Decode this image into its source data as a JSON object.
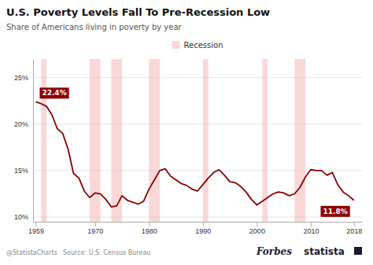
{
  "chart_data": {
    "type": "line",
    "title": "U.S. Poverty Levels Fall To Pre-Recession Low",
    "subtitle": "Share of Americans living in poverty by year",
    "source": "Source: U.S. Census Bureau",
    "credits": [
      "@StatistaCharts",
      "Forbes",
      "statista"
    ],
    "x": [
      1959,
      1960,
      1961,
      1962,
      1963,
      1964,
      1965,
      1966,
      1967,
      1968,
      1969,
      1970,
      1971,
      1972,
      1973,
      1974,
      1975,
      1976,
      1977,
      1978,
      1979,
      1980,
      1981,
      1982,
      1983,
      1984,
      1985,
      1986,
      1987,
      1988,
      1989,
      1990,
      1991,
      1992,
      1993,
      1994,
      1995,
      1996,
      1997,
      1998,
      1999,
      2000,
      2001,
      2002,
      2003,
      2004,
      2005,
      2006,
      2007,
      2008,
      2009,
      2010,
      2011,
      2012,
      2013,
      2014,
      2015,
      2016,
      2017,
      2018
    ],
    "series": [
      {
        "color": "#8B0000",
        "values": [
          22.4,
          22.2,
          21.9,
          21.0,
          19.5,
          19.0,
          17.3,
          14.7,
          14.2,
          12.8,
          12.1,
          12.6,
          12.5,
          11.9,
          11.1,
          11.2,
          12.3,
          11.8,
          11.6,
          11.4,
          11.7,
          13.0,
          14.0,
          15.0,
          15.2,
          14.4,
          14.0,
          13.6,
          13.4,
          13.0,
          12.8,
          13.5,
          14.2,
          14.8,
          15.1,
          14.5,
          13.8,
          13.7,
          13.3,
          12.7,
          11.9,
          11.3,
          11.7,
          12.1,
          12.5,
          12.7,
          12.6,
          12.3,
          12.5,
          13.2,
          14.3,
          15.1,
          15.0,
          15.0,
          14.5,
          14.8,
          13.5,
          12.7,
          12.3,
          11.8
        ]
      }
    ],
    "bands": {
      "name": "Recession",
      "color": "#f5b8b8",
      "periods": [
        [
          1960,
          1961
        ],
        [
          1969,
          1971
        ],
        [
          1973,
          1975
        ],
        [
          1980,
          1982
        ],
        [
          1990,
          1991
        ],
        [
          2001,
          2002
        ],
        [
          2007,
          2009
        ]
      ]
    },
    "annotations": [
      {
        "x": 1959,
        "y": 22.4,
        "label": "22.4%"
      },
      {
        "x": 2018,
        "y": 11.8,
        "label": "11.8%"
      }
    ],
    "xlim": [
      1958.5,
      2019.5
    ],
    "xticks": [
      1959,
      1970,
      1980,
      1990,
      2000,
      2010,
      2018
    ],
    "ylim": [
      9.5,
      27.0
    ],
    "yticks": [
      {
        "value": 10,
        "label": "10%"
      },
      {
        "value": 15,
        "label": "15%"
      },
      {
        "value": 20,
        "label": "20%"
      },
      {
        "value": 25,
        "label": "25%"
      }
    ],
    "grid": true,
    "legend": "top"
  }
}
